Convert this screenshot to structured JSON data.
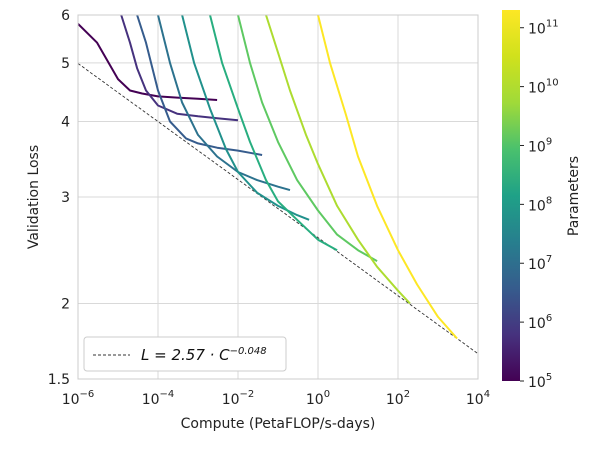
{
  "chart_data": {
    "type": "line",
    "title": "",
    "xlabel": "Compute (PetaFLOP/s-days)",
    "ylabel": "Validation Loss",
    "xscale": "log",
    "yscale": "log",
    "xlim": [
      1e-06,
      10000.0
    ],
    "ylim": [
      1.5,
      6
    ],
    "x_ticks": [
      {
        "value": 1e-06,
        "base": "10",
        "exp": "−6"
      },
      {
        "value": 0.0001,
        "base": "10",
        "exp": "−4"
      },
      {
        "value": 0.01,
        "base": "10",
        "exp": "−2"
      },
      {
        "value": 1,
        "base": "10",
        "exp": "0"
      },
      {
        "value": 100.0,
        "base": "10",
        "exp": "2"
      },
      {
        "value": 10000.0,
        "base": "10",
        "exp": "4"
      }
    ],
    "y_ticks": [
      {
        "value": 1.5,
        "label": "1.5"
      },
      {
        "value": 2,
        "label": "2"
      },
      {
        "value": 3,
        "label": "3"
      },
      {
        "value": 4,
        "label": "4"
      },
      {
        "value": 5,
        "label": "5"
      },
      {
        "value": 6,
        "label": "6"
      }
    ],
    "grid": true,
    "legend": {
      "position": "bottom-left",
      "text": "L = 2.57 · C",
      "exp": "−0.048",
      "style": "dashed",
      "color": "#333333"
    },
    "frontier": {
      "a": 2.57,
      "b": -0.048,
      "color": "#333333"
    },
    "colorbar": {
      "label": "Parameters",
      "colormap": "viridis",
      "scale": "log",
      "range": [
        100000.0,
        200000000000.0
      ],
      "ticks": [
        {
          "value": 100000.0,
          "base": "10",
          "exp": "5"
        },
        {
          "value": 1000000.0,
          "base": "10",
          "exp": "6"
        },
        {
          "value": 10000000.0,
          "base": "10",
          "exp": "7"
        },
        {
          "value": 100000000.0,
          "base": "10",
          "exp": "8"
        },
        {
          "value": 1000000000.0,
          "base": "10",
          "exp": "9"
        },
        {
          "value": 10000000000.0,
          "base": "10",
          "exp": "10"
        },
        {
          "value": 100000000000.0,
          "base": "10",
          "exp": "11"
        }
      ]
    },
    "series": [
      {
        "params": 120000.0,
        "color": "#440154",
        "x": [
          1e-06,
          3e-06,
          1e-05,
          2e-05,
          4e-05,
          0.0001,
          0.0003,
          0.001,
          0.003
        ],
        "y": [
          5.8,
          5.4,
          4.7,
          4.5,
          4.45,
          4.4,
          4.38,
          4.36,
          4.34
        ]
      },
      {
        "params": 400000.0,
        "color": "#46327e",
        "x": [
          1.2e-05,
          2e-05,
          3e-05,
          5e-05,
          0.0001,
          0.0003,
          0.001,
          0.003,
          0.01
        ],
        "y": [
          6.0,
          5.4,
          4.9,
          4.5,
          4.25,
          4.12,
          4.08,
          4.05,
          4.02
        ]
      },
      {
        "params": 1500000.0,
        "color": "#365c8d",
        "x": [
          3e-05,
          5e-05,
          0.0001,
          0.0002,
          0.0005,
          0.001,
          0.003,
          0.01,
          0.02,
          0.04
        ],
        "y": [
          6.0,
          5.4,
          4.5,
          4.0,
          3.75,
          3.68,
          3.62,
          3.58,
          3.55,
          3.52
        ]
      },
      {
        "params": 5000000.0,
        "color": "#2c728e",
        "x": [
          0.0001,
          0.0002,
          0.0004,
          0.001,
          0.003,
          0.01,
          0.03,
          0.1,
          0.2
        ],
        "y": [
          6.0,
          5.0,
          4.3,
          3.8,
          3.5,
          3.3,
          3.2,
          3.12,
          3.08
        ]
      },
      {
        "params": 20000000.0,
        "color": "#21918c",
        "x": [
          0.0004,
          0.0008,
          0.002,
          0.005,
          0.01,
          0.03,
          0.1,
          0.3,
          0.6
        ],
        "y": [
          6.0,
          5.0,
          4.2,
          3.6,
          3.3,
          3.05,
          2.9,
          2.8,
          2.75
        ]
      },
      {
        "params": 80000000.0,
        "color": "#28ae80",
        "x": [
          0.002,
          0.004,
          0.01,
          0.02,
          0.05,
          0.1,
          0.3,
          1,
          3
        ],
        "y": [
          6.0,
          5.0,
          4.2,
          3.7,
          3.2,
          2.95,
          2.75,
          2.55,
          2.45
        ]
      },
      {
        "params": 300000000.0,
        "color": "#5ec962",
        "x": [
          0.01,
          0.02,
          0.04,
          0.1,
          0.3,
          1,
          3,
          10.0,
          30.0
        ],
        "y": [
          6.0,
          5.0,
          4.3,
          3.7,
          3.2,
          2.85,
          2.6,
          2.45,
          2.35
        ]
      },
      {
        "params": 1500000000.0,
        "color": "#addc30",
        "x": [
          0.05,
          0.1,
          0.2,
          0.5,
          1,
          3,
          10.0,
          30.0,
          100.0,
          200.0
        ],
        "y": [
          6.0,
          5.2,
          4.5,
          3.8,
          3.4,
          2.9,
          2.55,
          2.3,
          2.1,
          2.0
        ]
      },
      {
        "params": 175000000000.0,
        "color": "#fde725",
        "x": [
          1,
          2,
          5,
          10.0,
          30.0,
          100.0,
          300.0,
          1000.0,
          3000.0
        ],
        "y": [
          6.0,
          5.0,
          4.1,
          3.5,
          2.9,
          2.45,
          2.15,
          1.9,
          1.75
        ]
      }
    ]
  }
}
